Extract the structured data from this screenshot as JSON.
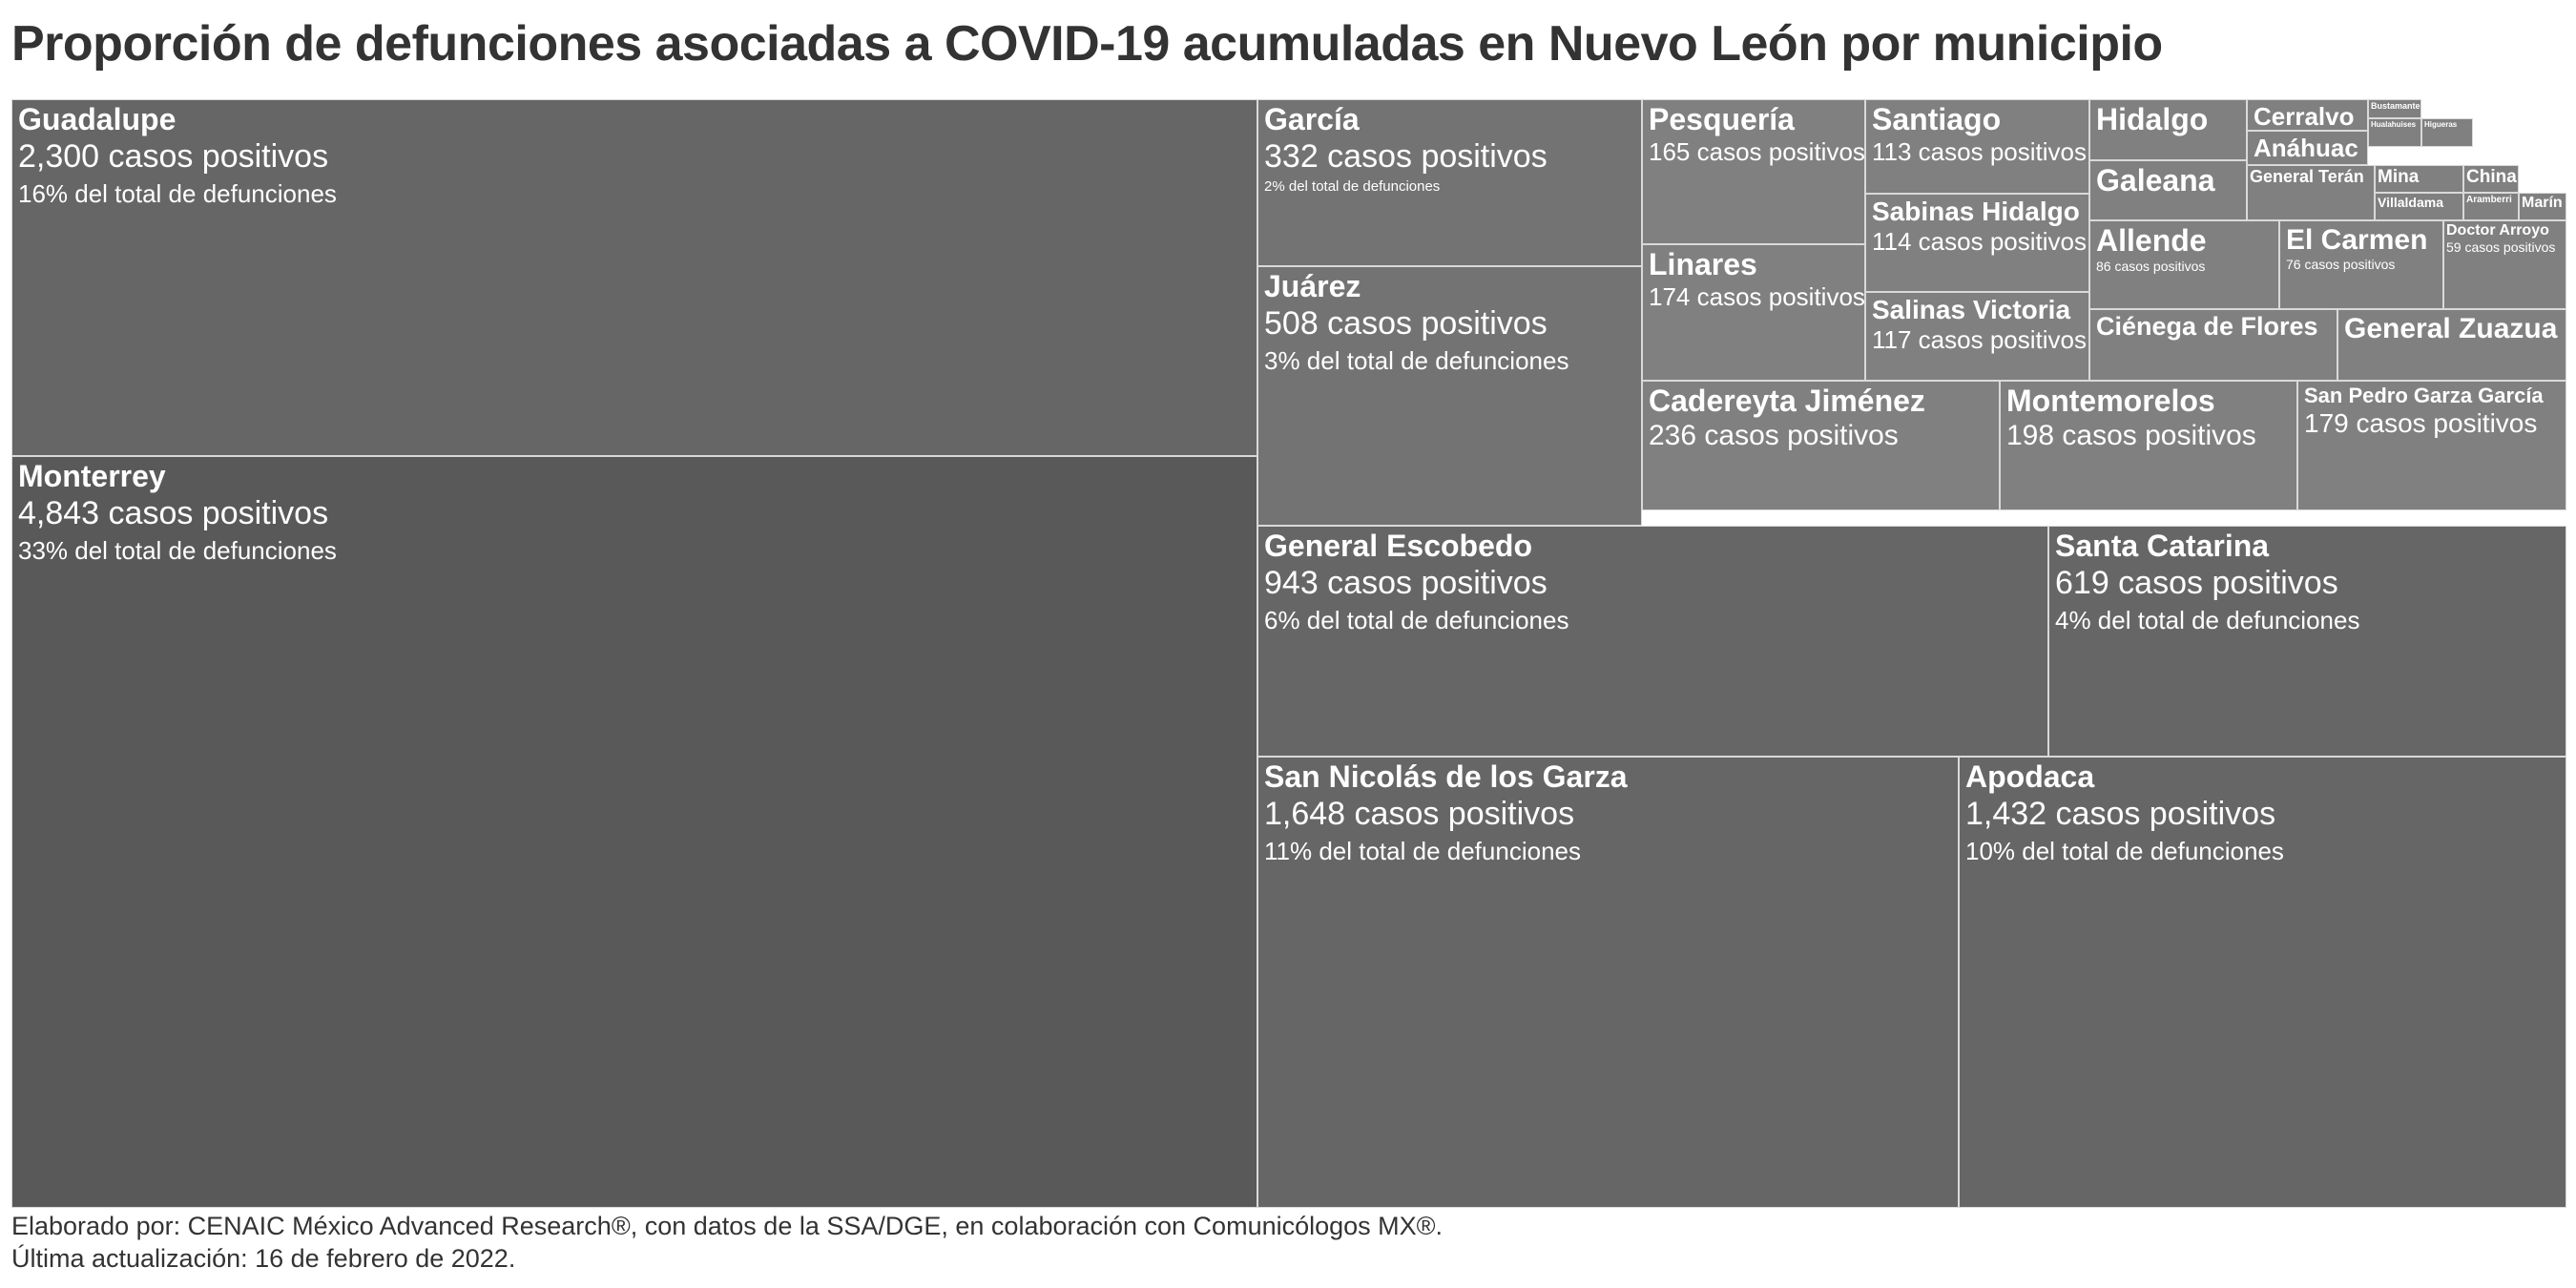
{
  "title": "Proporción de defunciones asociadas a COVID-19 acumuladas en Nuevo León por municipio",
  "footer": {
    "line1": "Elaborado por: CENAIC México Advanced Research®, con datos de la SSA/DGE, en colaboración con Comunicólogos MX®.",
    "line2": "Última actualización: 16 de febrero de 2022."
  },
  "colors": {
    "largest": "#595959",
    "large": "#666666",
    "medium": "#737373",
    "small": "#808080",
    "border": "#d9d9d9",
    "text": "#ffffff"
  },
  "chart_data": {
    "type": "treemap",
    "value_label": "casos positivos",
    "items": [
      {
        "name": "Monterrey",
        "cases": 4843,
        "cases_label": "4,843 casos positivos",
        "pct_label": "33% del total de defunciones"
      },
      {
        "name": "Guadalupe",
        "cases": 2300,
        "cases_label": "2,300 casos positivos",
        "pct_label": "16% del total de defunciones"
      },
      {
        "name": "San Nicolás de los Garza",
        "cases": 1648,
        "cases_label": "1,648 casos positivos",
        "pct_label": "11% del total de defunciones"
      },
      {
        "name": "Apodaca",
        "cases": 1432,
        "cases_label": "1,432 casos positivos",
        "pct_label": "10% del total de defunciones"
      },
      {
        "name": "General Escobedo",
        "cases": 943,
        "cases_label": "943 casos positivos",
        "pct_label": "6% del total de defunciones"
      },
      {
        "name": "Santa Catarina",
        "cases": 619,
        "cases_label": "619 casos positivos",
        "pct_label": "4% del total de defunciones"
      },
      {
        "name": "Juárez",
        "cases": 508,
        "cases_label": "508 casos positivos",
        "pct_label": "3% del total de defunciones"
      },
      {
        "name": "García",
        "cases": 332,
        "cases_label": "332 casos positivos",
        "pct_label": "2% del total de defunciones"
      },
      {
        "name": "Cadereyta Jiménez",
        "cases": 236,
        "cases_label": "236 casos positivos",
        "pct_label": ""
      },
      {
        "name": "Montemorelos",
        "cases": 198,
        "cases_label": "198 casos positivos",
        "pct_label": ""
      },
      {
        "name": "San Pedro Garza García",
        "cases": 179,
        "cases_label": "179 casos positivos",
        "pct_label": ""
      },
      {
        "name": "Linares",
        "cases": 174,
        "cases_label": "174 casos positivos",
        "pct_label": ""
      },
      {
        "name": "Pesquería",
        "cases": 165,
        "cases_label": "165 casos positivos",
        "pct_label": ""
      },
      {
        "name": "Salinas Victoria",
        "cases": 117,
        "cases_label": "117 casos positivos",
        "pct_label": ""
      },
      {
        "name": "Sabinas Hidalgo",
        "cases": 114,
        "cases_label": "114 casos positivos",
        "pct_label": ""
      },
      {
        "name": "Santiago",
        "cases": 113,
        "cases_label": "113 casos positivos",
        "pct_label": ""
      },
      {
        "name": "Allende",
        "cases": 86,
        "cases_label": "86 casos positivos",
        "pct_label": ""
      },
      {
        "name": "El Carmen",
        "cases": 76,
        "cases_label": "76 casos positivos",
        "pct_label": ""
      },
      {
        "name": "Doctor Arroyo",
        "cases": 59,
        "cases_label": "59 casos positivos",
        "pct_label": ""
      },
      {
        "name": "Ciénega de Flores",
        "cases": null,
        "cases_label": "",
        "pct_label": ""
      },
      {
        "name": "General Zuazua",
        "cases": null,
        "cases_label": "",
        "pct_label": ""
      },
      {
        "name": "Hidalgo",
        "cases": null,
        "cases_label": "",
        "pct_label": ""
      },
      {
        "name": "Galeana",
        "cases": null,
        "cases_label": "",
        "pct_label": ""
      },
      {
        "name": "Cerralvo",
        "cases": null,
        "cases_label": "",
        "pct_label": ""
      },
      {
        "name": "Anáhuac",
        "cases": null,
        "cases_label": "",
        "pct_label": ""
      },
      {
        "name": "General Terán",
        "cases": null,
        "cases_label": "",
        "pct_label": ""
      },
      {
        "name": "Mina",
        "cases": null,
        "cases_label": "",
        "pct_label": ""
      },
      {
        "name": "China",
        "cases": null,
        "cases_label": "",
        "pct_label": ""
      },
      {
        "name": "Villaldama",
        "cases": null,
        "cases_label": "",
        "pct_label": ""
      },
      {
        "name": "Aramberri",
        "cases": null,
        "cases_label": "",
        "pct_label": ""
      },
      {
        "name": "Marín",
        "cases": null,
        "cases_label": "",
        "pct_label": ""
      },
      {
        "name": "Bustamante",
        "cases": null,
        "cases_label": "",
        "pct_label": ""
      },
      {
        "name": "Hualahuises",
        "cases": null,
        "cases_label": "",
        "pct_label": ""
      },
      {
        "name": "Higueras",
        "cases": null,
        "cases_label": "",
        "pct_label": ""
      },
      {
        "name": "Apodaca",
        "cases": null,
        "cases_label": "",
        "pct_label": ""
      }
    ]
  }
}
